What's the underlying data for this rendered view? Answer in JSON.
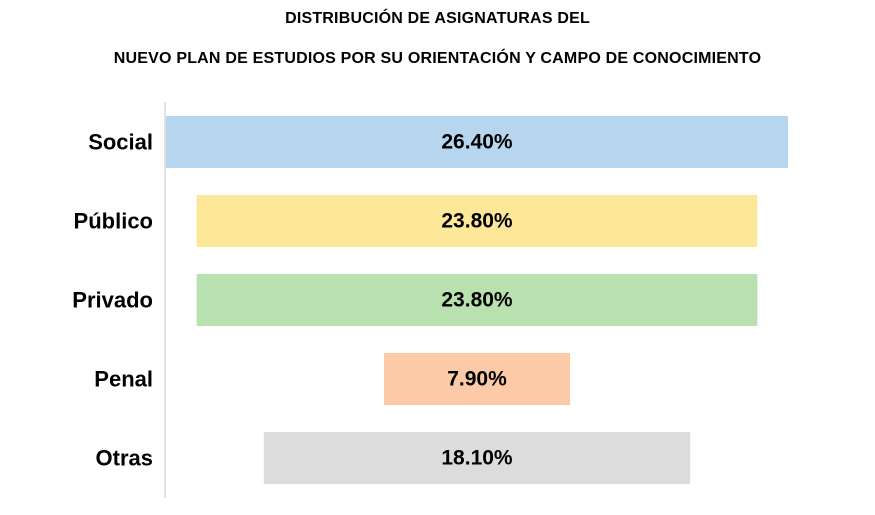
{
  "chart_data": {
    "type": "bar",
    "orientation": "horizontal-centered",
    "title_lines": [
      "DISTRIBUCIÓN DE ASIGNATURAS DEL",
      "NUEVO PLAN DE ESTUDIOS POR SU ORIENTACIÓN Y CAMPO DE CONOCIMIENTO"
    ],
    "categories": [
      "Social",
      "Público",
      "Privado",
      "Penal",
      "Otras"
    ],
    "values": [
      26.4,
      23.8,
      23.8,
      7.9,
      18.1
    ],
    "value_labels": [
      "26.40%",
      "23.80%",
      "23.80%",
      "7.90%",
      "18.10%"
    ],
    "colors": [
      "#b5d6ee",
      "#fde89a",
      "#b9e1b0",
      "#fccaa6",
      "#dcdcdc"
    ],
    "unit": "%",
    "xlim": [
      0,
      26.4
    ],
    "grid": false,
    "legend": "none"
  }
}
